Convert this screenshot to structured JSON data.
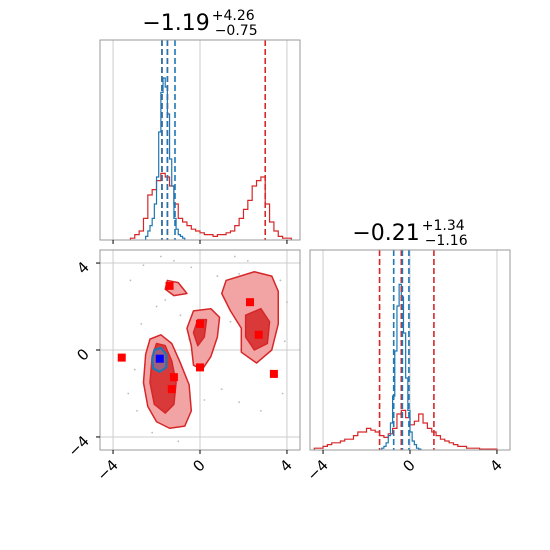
{
  "chart_data": {
    "type": "corner",
    "colors": {
      "red": "#d62728",
      "blue": "#1f77b4",
      "fill_dark": "#d62728",
      "fill_light": "#f2a3a4",
      "frame": "#999999",
      "grid": "#cccccc"
    },
    "grid": true,
    "params": [
      {
        "title_main": "−1.19",
        "title_sup": "+4.26",
        "title_sub": "−0.75"
      },
      {
        "title_main": "−0.21",
        "title_sup": "+1.34",
        "title_sub": "−1.16"
      }
    ],
    "axis_range": [
      -4.6,
      4.6
    ],
    "ticks": [
      {
        "value": -4,
        "label": "−4"
      },
      {
        "value": 0,
        "label": "0"
      },
      {
        "value": 4,
        "label": "4"
      }
    ],
    "marginals": [
      {
        "red_quantile_lines": [
          -1.75,
          3.0
        ],
        "red_median_line": -1.5,
        "blue_quantile_lines": [
          -1.75,
          -1.15
        ],
        "blue_median_line": -1.5,
        "red_hist_edges": [
          -3.2,
          -3.0,
          -2.8,
          -2.6,
          -2.4,
          -2.2,
          -2.0,
          -1.8,
          -1.6,
          -1.4,
          -1.2,
          -1.0,
          -0.8,
          -0.6,
          -0.4,
          -0.2,
          0.0,
          0.2,
          0.4,
          0.6,
          0.8,
          1.0,
          1.2,
          1.4,
          1.6,
          1.8,
          2.0,
          2.2,
          2.4,
          2.6,
          2.8,
          3.0,
          3.2,
          3.4,
          3.6,
          3.8,
          4.0,
          4.2
        ],
        "red_hist_counts": [
          0.01,
          0.03,
          0.05,
          0.12,
          0.25,
          0.28,
          0.33,
          0.37,
          0.35,
          0.3,
          0.2,
          0.12,
          0.1,
          0.08,
          0.06,
          0.05,
          0.04,
          0.03,
          0.03,
          0.02,
          0.03,
          0.03,
          0.04,
          0.05,
          0.08,
          0.12,
          0.17,
          0.22,
          0.3,
          0.33,
          0.35,
          0.2,
          0.1,
          0.05,
          0.02,
          0.01,
          0.01
        ],
        "blue_hist_edges": [
          -2.5,
          -2.4,
          -2.3,
          -2.2,
          -2.1,
          -2.0,
          -1.9,
          -1.8,
          -1.7,
          -1.6,
          -1.5,
          -1.4,
          -1.3,
          -1.2,
          -1.1,
          -1.0,
          -0.9,
          -0.8,
          -0.7
        ],
        "blue_hist_counts": [
          0.02,
          0.05,
          0.08,
          0.12,
          0.2,
          0.35,
          0.6,
          0.82,
          0.9,
          0.85,
          0.7,
          0.45,
          0.3,
          0.12,
          0.06,
          0.03,
          0.02,
          0.01
        ],
        "hist_ymax": 1.0
      },
      {
        "red_quantile_lines": [
          -1.4,
          1.1
        ],
        "red_median_line": -0.4,
        "blue_quantile_lines": [
          -0.75,
          -0.05
        ],
        "blue_median_line": -0.35,
        "red_hist_edges": [
          -4.4,
          -4.2,
          -4.0,
          -3.8,
          -3.6,
          -3.4,
          -3.2,
          -3.0,
          -2.8,
          -2.6,
          -2.4,
          -2.2,
          -2.0,
          -1.8,
          -1.6,
          -1.4,
          -1.2,
          -1.0,
          -0.8,
          -0.6,
          -0.4,
          -0.2,
          0.0,
          0.2,
          0.4,
          0.6,
          0.8,
          1.0,
          1.2,
          1.4,
          1.6,
          1.8,
          2.0,
          2.2,
          2.4,
          2.6,
          2.8,
          3.0,
          3.2,
          3.4,
          3.6,
          3.8,
          4.0
        ],
        "red_hist_counts": [
          0.01,
          0.01,
          0.02,
          0.03,
          0.04,
          0.04,
          0.05,
          0.06,
          0.06,
          0.08,
          0.1,
          0.1,
          0.12,
          0.11,
          0.1,
          0.08,
          0.07,
          0.09,
          0.12,
          0.2,
          0.22,
          0.18,
          0.14,
          0.16,
          0.2,
          0.15,
          0.12,
          0.1,
          0.08,
          0.06,
          0.05,
          0.04,
          0.03,
          0.02,
          0.02,
          0.01,
          0.01,
          0.01,
          0.005,
          0.005,
          0.005,
          0.005
        ],
        "blue_hist_edges": [
          -1.3,
          -1.2,
          -1.1,
          -1.0,
          -0.9,
          -0.8,
          -0.7,
          -0.6,
          -0.5,
          -0.4,
          -0.3,
          -0.2,
          -0.1,
          0.0,
          0.1,
          0.2,
          0.3,
          0.4,
          0.5
        ],
        "blue_hist_counts": [
          0.01,
          0.02,
          0.04,
          0.08,
          0.15,
          0.3,
          0.55,
          0.8,
          0.92,
          0.85,
          0.65,
          0.4,
          0.22,
          0.1,
          0.05,
          0.03,
          0.01,
          0.005
        ],
        "hist_ymax": 1.0
      }
    ],
    "joint": {
      "red_contours_outer": [
        [
          [
            -2.5,
            -0.2
          ],
          [
            -2.3,
            0.5
          ],
          [
            -1.8,
            0.7
          ],
          [
            -1.3,
            0.3
          ],
          [
            -0.9,
            -0.6
          ],
          [
            -0.5,
            -1.6
          ],
          [
            -0.4,
            -2.8
          ],
          [
            -0.7,
            -3.5
          ],
          [
            -1.4,
            -3.6
          ],
          [
            -2.0,
            -3.3
          ],
          [
            -2.4,
            -2.6
          ],
          [
            -2.6,
            -1.5
          ]
        ],
        [
          [
            -0.3,
            1.8
          ],
          [
            0.5,
            1.9
          ],
          [
            0.9,
            1.5
          ],
          [
            0.8,
            0.6
          ],
          [
            0.5,
            -0.3
          ],
          [
            0.1,
            -0.9
          ],
          [
            -0.3,
            -0.7
          ],
          [
            -0.4,
            0.2
          ],
          [
            -0.6,
            1.0
          ]
        ],
        [
          [
            1.2,
            3.2
          ],
          [
            2.5,
            3.6
          ],
          [
            3.3,
            3.4
          ],
          [
            3.6,
            2.7
          ],
          [
            3.6,
            1.2
          ],
          [
            3.3,
            0.0
          ],
          [
            2.6,
            -0.6
          ],
          [
            1.9,
            -0.1
          ],
          [
            1.9,
            1.0
          ],
          [
            1.4,
            1.8
          ],
          [
            1.0,
            2.6
          ]
        ],
        [
          [
            -1.5,
            3.2
          ],
          [
            -1.0,
            3.1
          ],
          [
            -0.6,
            2.6
          ],
          [
            -1.2,
            2.5
          ],
          [
            -1.6,
            2.8
          ]
        ]
      ],
      "red_contours_inner": [
        [
          [
            -2.2,
            -0.3
          ],
          [
            -2.0,
            0.3
          ],
          [
            -1.6,
            0.2
          ],
          [
            -1.3,
            -0.5
          ],
          [
            -1.1,
            -1.5
          ],
          [
            -1.2,
            -2.5
          ],
          [
            -1.6,
            -2.9
          ],
          [
            -2.1,
            -2.5
          ],
          [
            -2.3,
            -1.5
          ]
        ],
        [
          [
            2.1,
            1.6
          ],
          [
            2.8,
            1.9
          ],
          [
            3.2,
            1.3
          ],
          [
            3.1,
            0.3
          ],
          [
            2.5,
            0.0
          ],
          [
            2.1,
            0.6
          ]
        ],
        [
          [
            -0.1,
            1.4
          ],
          [
            0.3,
            1.4
          ],
          [
            0.2,
            0.6
          ],
          [
            -0.1,
            0.2
          ],
          [
            -0.3,
            0.8
          ]
        ]
      ],
      "blue_contour": [
        [
          -2.2,
          -0.45
        ],
        [
          -2.1,
          0.0
        ],
        [
          -1.8,
          0.1
        ],
        [
          -1.55,
          -0.2
        ],
        [
          -1.55,
          -0.8
        ],
        [
          -1.85,
          -1.0
        ],
        [
          -2.15,
          -0.85
        ]
      ],
      "red_points": [
        [
          -1.4,
          2.95
        ],
        [
          2.3,
          2.2
        ],
        [
          2.7,
          0.7
        ],
        [
          3.4,
          -1.1
        ],
        [
          -3.6,
          -0.35
        ],
        [
          0.0,
          1.2
        ],
        [
          0.0,
          -0.8
        ],
        [
          -1.2,
          -1.25
        ],
        [
          -1.3,
          -1.8
        ]
      ],
      "blue_points": [
        [
          -1.85,
          -0.4
        ]
      ],
      "scatter_grey": [
        [
          -1.8,
          4.3
        ],
        [
          -1.2,
          4.1
        ],
        [
          -0.4,
          3.8
        ],
        [
          1.6,
          4.3
        ],
        [
          2.2,
          4.1
        ],
        [
          -2.6,
          3.9
        ],
        [
          -3.2,
          3.2
        ],
        [
          -2.0,
          2.0
        ],
        [
          -0.9,
          1.6
        ],
        [
          1.8,
          3.5
        ],
        [
          0.8,
          3.4
        ],
        [
          -2.7,
          1.2
        ],
        [
          -3.0,
          -0.9
        ],
        [
          -3.3,
          -2.0
        ],
        [
          -2.9,
          -2.8
        ],
        [
          -0.5,
          -3.0
        ],
        [
          0.2,
          -2.3
        ],
        [
          1.0,
          -1.8
        ],
        [
          1.8,
          -2.4
        ],
        [
          2.8,
          -2.8
        ],
        [
          3.8,
          -2.0
        ],
        [
          3.9,
          0.4
        ],
        [
          4.0,
          2.2
        ],
        [
          -1.6,
          2.3
        ],
        [
          -0.5,
          0.5
        ],
        [
          0.6,
          0.0
        ],
        [
          1.4,
          1.3
        ],
        [
          3.7,
          3.2
        ],
        [
          -2.2,
          -3.8
        ],
        [
          -1.0,
          -4.2
        ]
      ]
    }
  }
}
